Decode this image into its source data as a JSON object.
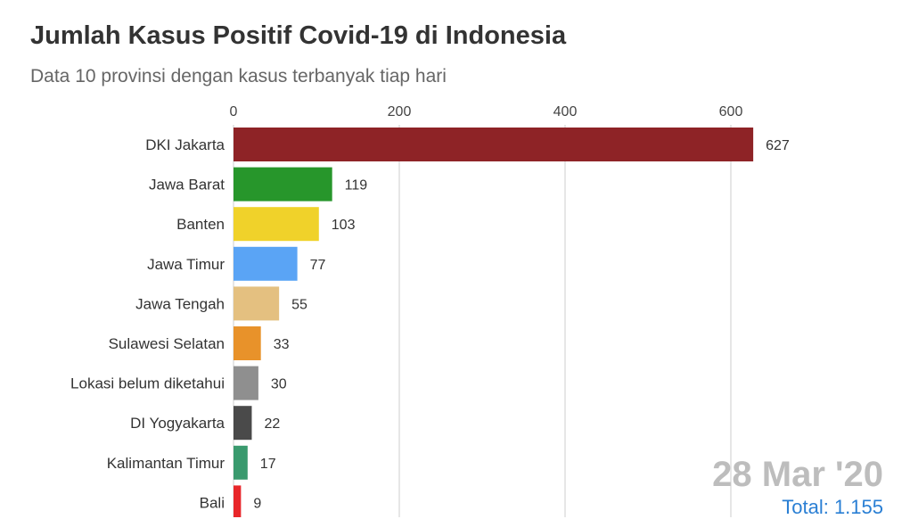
{
  "chart_data": {
    "type": "bar",
    "orientation": "horizontal",
    "title": "Jumlah Kasus Positif Covid-19 di Indonesia",
    "subtitle": "Data 10 provinsi dengan kasus terbanyak tiap hari",
    "categories": [
      "DKI Jakarta",
      "Jawa Barat",
      "Banten",
      "Jawa Timur",
      "Jawa Tengah",
      "Sulawesi Selatan",
      "Lokasi belum diketahui",
      "DI Yogyakarta",
      "Kalimantan Timur",
      "Bali"
    ],
    "values": [
      627,
      119,
      103,
      77,
      55,
      33,
      30,
      22,
      17,
      9
    ],
    "colors": [
      "#8e2326",
      "#27962b",
      "#f0d22a",
      "#5aa4f5",
      "#e4c080",
      "#e8922a",
      "#8f8f8f",
      "#4a4a4a",
      "#3a9a6e",
      "#e8262a"
    ],
    "xticks": [
      0,
      200,
      400,
      600
    ],
    "xlim": [
      0,
      680
    ],
    "grid": true,
    "date_label": "28 Mar '20",
    "total_label": "Total: 1.155"
  }
}
